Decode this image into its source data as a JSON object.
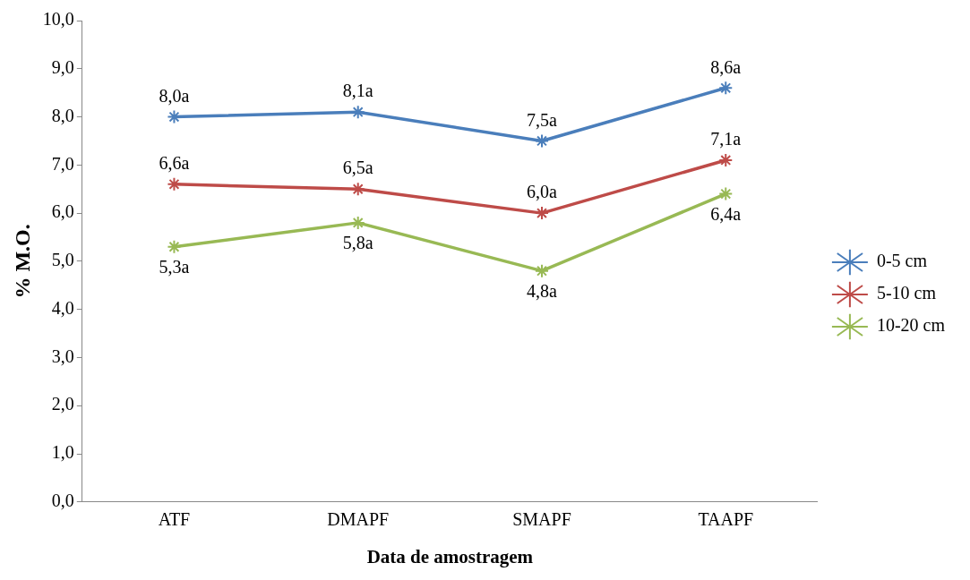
{
  "chart_data": {
    "type": "line",
    "xlabel": "Data de amostragem",
    "ylabel": "% M.O.",
    "categories": [
      "ATF",
      "DMAPF",
      "SMAPF",
      "TAAPF"
    ],
    "series": [
      {
        "name": "0-5 cm",
        "color": "#4a7ebb",
        "values": [
          8.0,
          8.1,
          7.5,
          8.6
        ],
        "value_labels": [
          "8,0a",
          "8,1a",
          "7,5a",
          "8,6a"
        ]
      },
      {
        "name": "5-10 cm",
        "color": "#be4b48",
        "values": [
          6.6,
          6.5,
          6.0,
          7.1
        ],
        "value_labels": [
          "6,6a",
          "6,5a",
          "6,0a",
          "7,1a"
        ]
      },
      {
        "name": "10-20 cm",
        "color": "#98b954",
        "values": [
          5.3,
          5.8,
          4.8,
          6.4
        ],
        "value_labels": [
          "5,3a",
          "5,8a",
          "4,8a",
          "6,4a"
        ]
      }
    ],
    "ylim": [
      0,
      10
    ],
    "yticks": [
      {
        "value": 0,
        "label": "0,0"
      },
      {
        "value": 1,
        "label": "1,0"
      },
      {
        "value": 2,
        "label": "2,0"
      },
      {
        "value": 3,
        "label": "3,0"
      },
      {
        "value": 4,
        "label": "4,0"
      },
      {
        "value": 5,
        "label": "5,0"
      },
      {
        "value": 6,
        "label": "6,0"
      },
      {
        "value": 7,
        "label": "7,0"
      },
      {
        "value": 8,
        "label": "8,0"
      },
      {
        "value": 9,
        "label": "9,0"
      },
      {
        "value": 10,
        "label": "10,0"
      }
    ],
    "grid": false,
    "legend": "right",
    "marker": "cross",
    "line_style": "solid"
  }
}
